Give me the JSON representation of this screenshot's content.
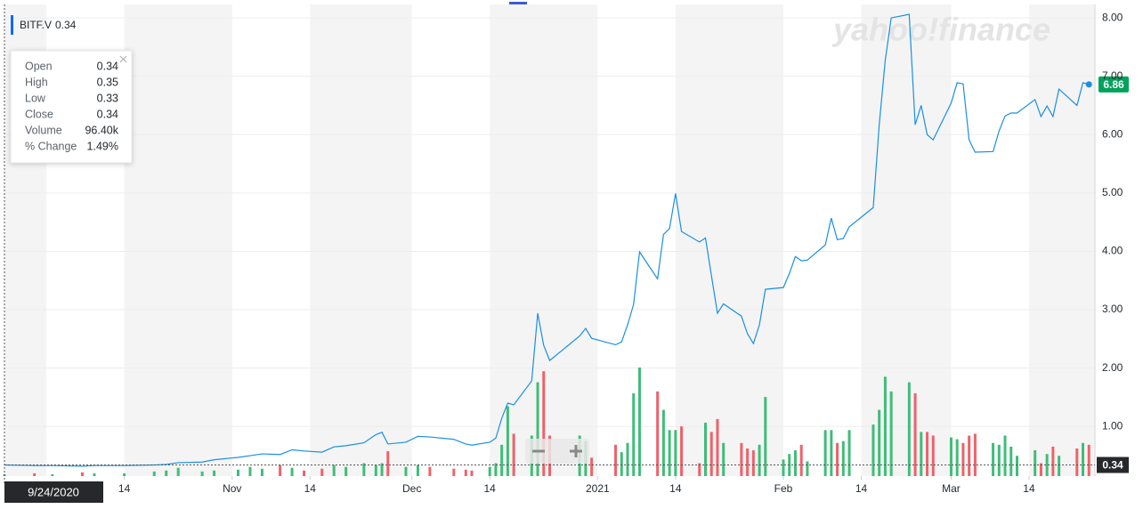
{
  "chart_data": {
    "type": "line",
    "symbol": "BITF.V",
    "watermark": "yahoo!finance",
    "line_color": "#1a8fe3",
    "up_color": "#3fbd78",
    "down_color": "#f0616a",
    "last_color": "#00a25a",
    "x": [
      "2020-09-24",
      "2020-09-29",
      "2020-10-02",
      "2020-10-07",
      "2020-10-09",
      "2020-10-14",
      "2020-10-19",
      "2020-10-21",
      "2020-10-23",
      "2020-10-27",
      "2020-10-29",
      "2020-11-02",
      "2020-11-04",
      "2020-11-06",
      "2020-11-09",
      "2020-11-11",
      "2020-11-13",
      "2020-11-16",
      "2020-11-18",
      "2020-11-20",
      "2020-11-23",
      "2020-11-25",
      "2020-11-26",
      "2020-11-27",
      "2020-11-30",
      "2020-12-02",
      "2020-12-04",
      "2020-12-08",
      "2020-12-10",
      "2020-12-11",
      "2020-12-14",
      "2020-12-15",
      "2020-12-16",
      "2020-12-17",
      "2020-12-18",
      "2020-12-21",
      "2020-12-22",
      "2020-12-23",
      "2020-12-24",
      "2020-12-29",
      "2020-12-30",
      "2020-12-31",
      "2021-01-04",
      "2021-01-05",
      "2021-01-06",
      "2021-01-07",
      "2021-01-08",
      "2021-01-11",
      "2021-01-12",
      "2021-01-13",
      "2021-01-14",
      "2021-01-15",
      "2021-01-18",
      "2021-01-19",
      "2021-01-20",
      "2021-01-21",
      "2021-01-22",
      "2021-01-25",
      "2021-01-26",
      "2021-01-27",
      "2021-01-28",
      "2021-01-29",
      "2021-02-01",
      "2021-02-02",
      "2021-02-03",
      "2021-02-04",
      "2021-02-05",
      "2021-02-08",
      "2021-02-09",
      "2021-02-10",
      "2021-02-11",
      "2021-02-12",
      "2021-02-16",
      "2021-02-17",
      "2021-02-18",
      "2021-02-19",
      "2021-02-22",
      "2021-02-23",
      "2021-02-24",
      "2021-02-25",
      "2021-02-26",
      "2021-03-01",
      "2021-03-02",
      "2021-03-03",
      "2021-03-04",
      "2021-03-05",
      "2021-03-08",
      "2021-03-09",
      "2021-03-10",
      "2021-03-11",
      "2021-03-12",
      "2021-03-15",
      "2021-03-16",
      "2021-03-17",
      "2021-03-18",
      "2021-03-19",
      "2021-03-22",
      "2021-03-23",
      "2021-03-24"
    ],
    "close": [
      0.34,
      0.33,
      0.33,
      0.32,
      0.33,
      0.33,
      0.34,
      0.35,
      0.38,
      0.39,
      0.43,
      0.47,
      0.5,
      0.53,
      0.52,
      0.6,
      0.58,
      0.56,
      0.65,
      0.67,
      0.72,
      0.86,
      0.9,
      0.7,
      0.73,
      0.83,
      0.82,
      0.78,
      0.7,
      0.68,
      0.73,
      0.8,
      1.14,
      1.4,
      1.37,
      1.78,
      2.94,
      2.39,
      2.13,
      2.55,
      2.68,
      2.51,
      2.4,
      2.45,
      2.74,
      3.09,
      3.99,
      3.53,
      4.29,
      4.39,
      4.99,
      4.34,
      4.16,
      4.23,
      3.58,
      2.94,
      3.1,
      2.89,
      2.59,
      2.42,
      2.74,
      3.35,
      3.38,
      3.62,
      3.91,
      3.84,
      3.85,
      4.11,
      4.57,
      4.2,
      4.22,
      4.42,
      4.75,
      6.17,
      7.27,
      8.0,
      8.06,
      6.17,
      6.5,
      6.0,
      5.91,
      6.54,
      6.89,
      6.87,
      5.91,
      5.7,
      5.71,
      6.06,
      6.32,
      6.37,
      6.37,
      6.6,
      6.31,
      6.49,
      6.31,
      6.78,
      6.5,
      6.89,
      6.86
    ],
    "volume": [
      96.4,
      150,
      100,
      200,
      150,
      150,
      250,
      300,
      450,
      250,
      300,
      350,
      500,
      400,
      600,
      450,
      300,
      400,
      600,
      500,
      700,
      600,
      700,
      1350,
      500,
      600,
      500,
      400,
      350,
      300,
      500,
      700,
      1700,
      3800,
      2300,
      2200,
      5100,
      5700,
      2200,
      2200,
      1900,
      1000,
      1700,
      1300,
      1800,
      4500,
      5900,
      4600,
      3600,
      2500,
      2500,
      2700,
      700,
      2900,
      2400,
      3100,
      1800,
      1800,
      1500,
      1400,
      1700,
      4300,
      900,
      1200,
      1400,
      1700,
      800,
      2500,
      2500,
      1800,
      1900,
      2500,
      2800,
      3600,
      5400,
      4600,
      5100,
      4500,
      2400,
      2400,
      2200,
      2100,
      2000,
      1800,
      2200,
      2300,
      1800,
      1700,
      2200,
      1600,
      1100,
      1400,
      700,
      1200,
      1600,
      1100,
      1500,
      1800,
      1700
    ],
    "xlim": [
      "2020-09-24",
      "2021-03-25"
    ],
    "xticks": [
      {
        "value": "2020-10-14",
        "label": "14"
      },
      {
        "value": "2020-11-01",
        "label": "Nov"
      },
      {
        "value": "2020-11-14",
        "label": "14"
      },
      {
        "value": "2020-12-01",
        "label": "Dec"
      },
      {
        "value": "2020-12-14",
        "label": "14"
      },
      {
        "value": "2021-01-01",
        "label": "2021"
      },
      {
        "value": "2021-01-14",
        "label": "14"
      },
      {
        "value": "2021-02-01",
        "label": "Feb"
      },
      {
        "value": "2021-02-14",
        "label": "14"
      },
      {
        "value": "2021-03-01",
        "label": "Mar"
      },
      {
        "value": "2021-03-14",
        "label": "14"
      }
    ],
    "ylim": [
      0.15,
      8.23
    ],
    "yticks": [
      {
        "value": 1,
        "label": "1.00"
      },
      {
        "value": 2,
        "label": "2.00"
      },
      {
        "value": 3,
        "label": "3.00"
      },
      {
        "value": 4,
        "label": "4.00"
      },
      {
        "value": 5,
        "label": "5.00"
      },
      {
        "value": 6,
        "label": "6.00"
      },
      {
        "value": 7,
        "label": "7.00"
      },
      {
        "value": 8,
        "label": "8.00"
      }
    ],
    "crosshair": {
      "date": "9/24/2020",
      "value": 0.34
    },
    "tooltip": [
      {
        "label": "Open",
        "value": "0.34"
      },
      {
        "label": "High",
        "value": "0.35"
      },
      {
        "label": "Low",
        "value": "0.33"
      },
      {
        "label": "Close",
        "value": "0.34"
      },
      {
        "label": "Volume",
        "value": "96.40k"
      },
      {
        "label": "% Change",
        "value": "1.49%"
      }
    ]
  }
}
